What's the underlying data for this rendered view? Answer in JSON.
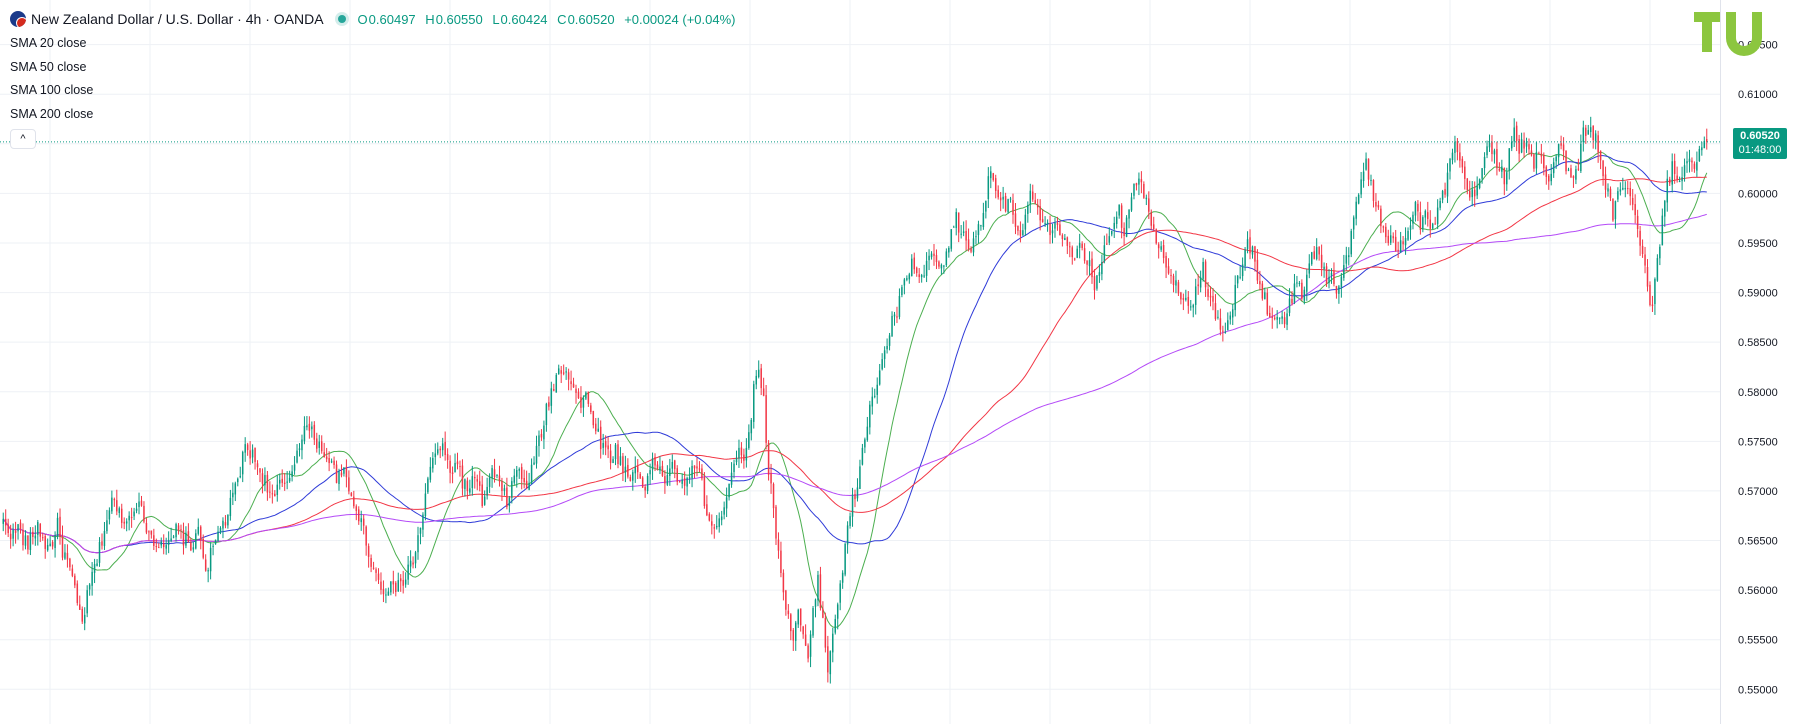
{
  "header": {
    "symbol_title": "New Zealand Dollar / U.S. Dollar · 4h · OANDA",
    "ohlc": {
      "o_label": "O",
      "o": "0.60497",
      "h_label": "H",
      "h": "0.60550",
      "l_label": "L",
      "l": "0.60424",
      "c_label": "C",
      "c": "0.60520",
      "change": "+0.00024 (+0.04%)"
    }
  },
  "studies": [
    {
      "label": "SMA 20 close",
      "color": "#4caf50"
    },
    {
      "label": "SMA 50 close",
      "color": "#2f3bd8"
    },
    {
      "label": "SMA 100 close",
      "color": "#f23645"
    },
    {
      "label": "SMA 200 close",
      "color": "#b44af7"
    }
  ],
  "collapse_label": "^",
  "price_tag": {
    "price": "0.60520",
    "countdown": "01:48:00"
  },
  "chart_data": {
    "type": "candlestick",
    "title": "New Zealand Dollar / U.S. Dollar · 4h · OANDA",
    "timeframe": "4h",
    "y_axis": {
      "ylim": [
        0.5465,
        0.6195
      ],
      "tick_labels": [
        "0.61500",
        "0.61000",
        "0.60500",
        "0.60000",
        "0.59500",
        "0.59000",
        "0.58500",
        "0.58000",
        "0.57500",
        "0.57000",
        "0.56500",
        "0.56000",
        "0.55500",
        "0.55000"
      ],
      "tick_values": [
        0.615,
        0.61,
        0.605,
        0.6,
        0.595,
        0.59,
        0.585,
        0.58,
        0.575,
        0.57,
        0.565,
        0.56,
        0.555,
        0.55
      ],
      "position": "right"
    },
    "x_axis": {
      "labels_visible": false
    },
    "grid": true,
    "last_price": 0.6052,
    "colors": {
      "up": "#089981",
      "down": "#f23645",
      "grid": "#eef1f5"
    },
    "price_path": [
      0.5668,
      0.5662,
      0.5655,
      0.5664,
      0.5652,
      0.5645,
      0.5655,
      0.5665,
      0.5652,
      0.5642,
      0.565,
      0.5665,
      0.564,
      0.5628,
      0.561,
      0.5585,
      0.5568,
      0.5592,
      0.5615,
      0.563,
      0.5652,
      0.5672,
      0.569,
      0.5681,
      0.5675,
      0.5668,
      0.568,
      0.569,
      0.5678,
      0.5665,
      0.5655,
      0.5647,
      0.5652,
      0.564,
      0.5648,
      0.566,
      0.5655,
      0.565,
      0.564,
      0.566,
      0.5652,
      0.562,
      0.5635,
      0.5648,
      0.5665,
      0.567,
      0.5685,
      0.5702,
      0.572,
      0.5745,
      0.574,
      0.573,
      0.572,
      0.571,
      0.57,
      0.569,
      0.571,
      0.57,
      0.5715,
      0.573,
      0.575,
      0.5765,
      0.576,
      0.5755,
      0.5745,
      0.574,
      0.573,
      0.572,
      0.5712,
      0.5718,
      0.57,
      0.569,
      0.5675,
      0.566,
      0.564,
      0.562,
      0.561,
      0.56,
      0.5605,
      0.5598,
      0.561,
      0.5605,
      0.562,
      0.563,
      0.565,
      0.568,
      0.571,
      0.573,
      0.5745,
      0.574,
      0.5728,
      0.572,
      0.573,
      0.571,
      0.57,
      0.5712,
      0.5705,
      0.569,
      0.57,
      0.572,
      0.571,
      0.57,
      0.569,
      0.5705,
      0.5722,
      0.5712,
      0.5705,
      0.572,
      0.574,
      0.576,
      0.578,
      0.58,
      0.5815,
      0.5825,
      0.5822,
      0.5812,
      0.58,
      0.5785,
      0.5795,
      0.578,
      0.5765,
      0.575,
      0.574,
      0.5735,
      0.574,
      0.573,
      0.572,
      0.571,
      0.5725,
      0.5715,
      0.5705,
      0.572,
      0.573,
      0.572,
      0.5712,
      0.5725,
      0.572,
      0.571,
      0.57,
      0.5715,
      0.573,
      0.572,
      0.569,
      0.567,
      0.566,
      0.5665,
      0.569,
      0.571,
      0.573,
      0.5745,
      0.5735,
      0.5755,
      0.58,
      0.583,
      0.579,
      0.572,
      0.568,
      0.564,
      0.56,
      0.557,
      0.5555,
      0.558,
      0.555,
      0.553,
      0.5575,
      0.561,
      0.557,
      0.552,
      0.556,
      0.559,
      0.562,
      0.566,
      0.569,
      0.5705,
      0.574,
      0.577,
      0.579,
      0.581,
      0.583,
      0.585,
      0.587,
      0.588,
      0.59,
      0.5915,
      0.593,
      0.592,
      0.591,
      0.5925,
      0.594,
      0.593,
      0.592,
      0.594,
      0.596,
      0.5975,
      0.596,
      0.595,
      0.5945,
      0.596,
      0.597,
      0.6,
      0.602,
      0.601,
      0.5995,
      0.599,
      0.6,
      0.596,
      0.595,
      0.598,
      0.6,
      0.5985,
      0.5975,
      0.5965,
      0.596,
      0.5975,
      0.5965,
      0.595,
      0.594,
      0.593,
      0.5945,
      0.5935,
      0.5925,
      0.591,
      0.5925,
      0.594,
      0.596,
      0.5975,
      0.5985,
      0.596,
      0.599,
      0.601,
      0.602,
      0.6,
      0.598,
      0.5965,
      0.595,
      0.594,
      0.5925,
      0.591,
      0.5905,
      0.5895,
      0.588,
      0.5895,
      0.591,
      0.5925,
      0.59,
      0.5885,
      0.587,
      0.5855,
      0.587,
      0.589,
      0.591,
      0.593,
      0.595,
      0.594,
      0.592,
      0.59,
      0.5885,
      0.5875,
      0.588,
      0.587,
      0.588,
      0.5895,
      0.591,
      0.59,
      0.592,
      0.5935,
      0.5945,
      0.593,
      0.591,
      0.592,
      0.59,
      0.591,
      0.5935,
      0.5955,
      0.5985,
      0.6015,
      0.603,
      0.601,
      0.599,
      0.597,
      0.595,
      0.596,
      0.594,
      0.595,
      0.596,
      0.5975,
      0.599,
      0.597,
      0.598,
      0.596,
      0.5975,
      0.599,
      0.6,
      0.603,
      0.605,
      0.603,
      0.601,
      0.6,
      0.5995,
      0.6015,
      0.6035,
      0.6055,
      0.604,
      0.6025,
      0.6015,
      0.604,
      0.606,
      0.6045,
      0.605,
      0.604,
      0.603,
      0.6045,
      0.603,
      0.6015,
      0.603,
      0.605,
      0.604,
      0.602,
      0.601,
      0.603,
      0.606,
      0.607,
      0.606,
      0.6045,
      0.602,
      0.6,
      0.5975,
      0.6,
      0.601,
      0.6,
      0.5985,
      0.597,
      0.594,
      0.59,
      0.5885,
      0.593,
      0.5975,
      0.601,
      0.6025,
      0.6015,
      0.602,
      0.603,
      0.6025,
      0.6035,
      0.6045,
      0.6052
    ],
    "sma_lines": [
      {
        "name": "SMA 20 close",
        "color": "#4caf50",
        "period": 20
      },
      {
        "name": "SMA 50 close",
        "color": "#2f3bd8",
        "period": 50
      },
      {
        "name": "SMA 100 close",
        "color": "#f23645",
        "period": 100
      },
      {
        "name": "SMA 200 close",
        "color": "#b44af7",
        "period": 200
      }
    ]
  }
}
